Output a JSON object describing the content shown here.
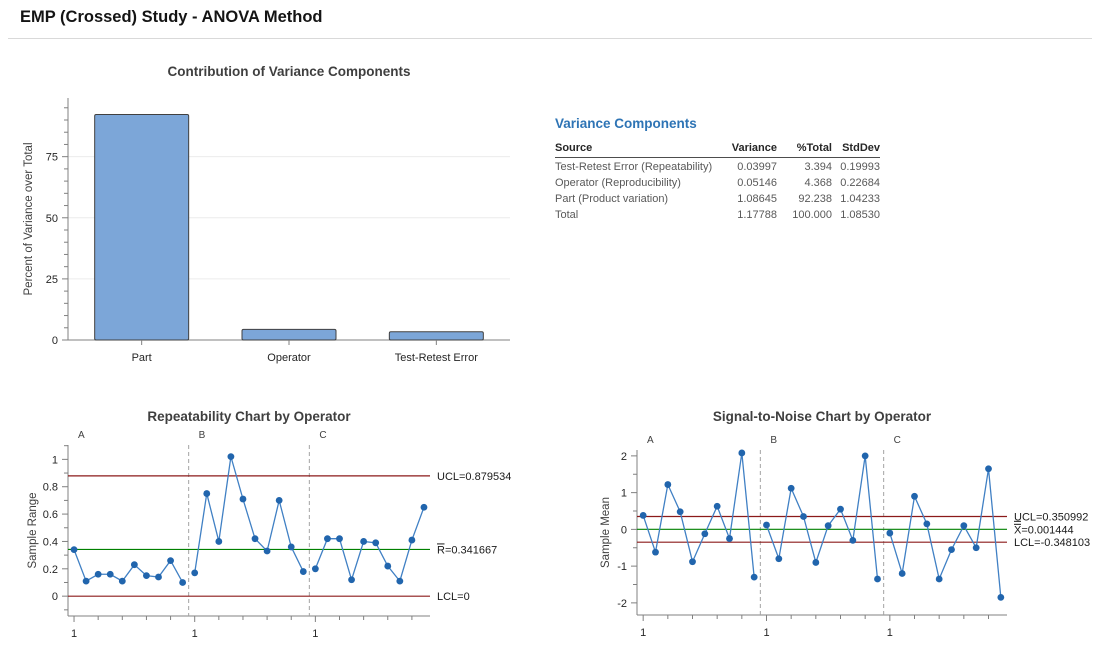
{
  "header": {
    "title": "EMP (Crossed) Study - ANOVA Method"
  },
  "variance_table": {
    "title": "Variance Components",
    "columns": [
      "Source",
      "Variance",
      "%Total",
      "StdDev"
    ],
    "rows": [
      [
        "Test-Retest Error (Repeatability)",
        "0.03997",
        "3.394",
        "0.19993"
      ],
      [
        "Operator (Reproducibility)",
        "0.05146",
        "4.368",
        "0.22684"
      ],
      [
        "Part (Product variation)",
        "1.08645",
        "92.238",
        "1.04233"
      ],
      [
        "Total",
        "1.17788",
        "100.000",
        "1.08530"
      ]
    ]
  },
  "chart_data": [
    {
      "type": "bar",
      "title": "Contribution of Variance Components",
      "ylabel": "Percent of Variance over Total",
      "xlabel": "",
      "categories": [
        "Part",
        "Operator",
        "Test-Retest Error"
      ],
      "values": [
        92.238,
        4.368,
        3.394
      ],
      "ylim": [
        0,
        99
      ],
      "yticks": [
        0,
        25,
        50,
        75
      ],
      "ytick_labels": [
        "0",
        "25",
        "50",
        "75"
      ],
      "minor_step": 5,
      "grid": true,
      "legend": "none"
    },
    {
      "type": "line",
      "subtype": "control-chart",
      "title": "Repeatability Chart by Operator",
      "ylabel": "Sample Range",
      "groups": [
        "A",
        "B",
        "C"
      ],
      "x_first_label": "1",
      "series": [
        {
          "name": "A",
          "values": [
            0.34,
            0.11,
            0.16,
            0.16,
            0.11,
            0.23,
            0.15,
            0.14,
            0.26,
            0.1
          ]
        },
        {
          "name": "B",
          "values": [
            0.17,
            0.75,
            0.4,
            1.02,
            0.71,
            0.42,
            0.33,
            0.7,
            0.36,
            0.18
          ]
        },
        {
          "name": "C",
          "values": [
            0.2,
            0.42,
            0.42,
            0.12,
            0.4,
            0.39,
            0.22,
            0.11,
            0.41,
            0.65
          ]
        }
      ],
      "ylim": [
        -0.145,
        1.105
      ],
      "yticks": [
        0,
        0.2,
        0.4,
        0.6,
        0.8,
        1
      ],
      "ytick_labels": [
        "0",
        "0.2",
        "0.4",
        "0.6",
        "0.8",
        "1"
      ],
      "minor_step": 0.1,
      "grid": false,
      "limits": [
        {
          "type": "ucl",
          "label": "UCL=0.879534",
          "value": 0.879534,
          "bar": "none"
        },
        {
          "type": "center",
          "label": "R=0.341667",
          "value": 0.341667,
          "bar": "single"
        },
        {
          "type": "lcl",
          "label": "LCL=0",
          "value": 0,
          "bar": "none"
        }
      ]
    },
    {
      "type": "line",
      "subtype": "control-chart",
      "title": "Signal-to-Noise Chart by Operator",
      "ylabel": "Sample Mean",
      "groups": [
        "A",
        "B",
        "C"
      ],
      "x_first_label": "1",
      "series": [
        {
          "name": "A",
          "values": [
            0.38,
            -0.62,
            1.22,
            0.48,
            -0.88,
            -0.12,
            0.63,
            -0.25,
            2.08,
            -1.3
          ]
        },
        {
          "name": "B",
          "values": [
            0.12,
            -0.8,
            1.12,
            0.35,
            -0.9,
            0.1,
            0.55,
            -0.3,
            2.0,
            -1.35
          ]
        },
        {
          "name": "C",
          "values": [
            -0.1,
            -1.2,
            0.9,
            0.15,
            -1.35,
            -0.55,
            0.1,
            -0.5,
            1.65,
            -1.85
          ]
        }
      ],
      "ylim": [
        -2.33,
        2.16
      ],
      "yticks": [
        -2,
        -1,
        0,
        1,
        2
      ],
      "ytick_labels": [
        "-2",
        "-1",
        "0",
        "1",
        "2"
      ],
      "minor_step": 0.5,
      "grid": false,
      "limits": [
        {
          "type": "ucl",
          "label": "UCL=0.350992",
          "value": 0.350992,
          "bar": "none"
        },
        {
          "type": "center",
          "label": "X=0.001444",
          "value": 0.001444,
          "bar": "double"
        },
        {
          "type": "lcl",
          "label": "LCL=-0.348103",
          "value": -0.348103,
          "bar": "none"
        }
      ]
    }
  ],
  "colors": {
    "heading_accent": "#2E74B5",
    "limit_line": "#8B1A1A",
    "center_line": "#008000",
    "point": "#2165AD",
    "line": "#4080C4",
    "bar_fill": "#7CA6D8",
    "bar_border": "#404040",
    "axis": "#808080",
    "grid": "#ECECEC",
    "separator": "#A3A3A3",
    "divider": "#D9D9D9"
  }
}
